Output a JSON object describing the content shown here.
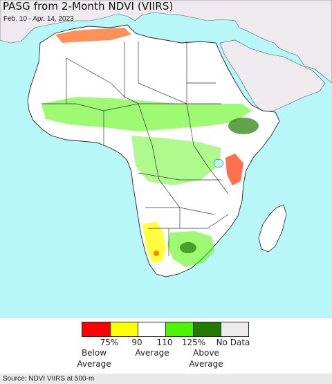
{
  "header": {
    "title": "PASG from 2-Month NDVI (VIIRS)",
    "date_range": "Feb. 10 - Apr. 14, 2023"
  },
  "colors": {
    "ocean": "#b8f7f7",
    "land_no_data": "#efeaf0",
    "land_average": "#ffffff",
    "border": "#333333"
  },
  "legend": {
    "swatches": [
      {
        "color": "#ff0000"
      },
      {
        "color": "#ffff00"
      },
      {
        "color": "#ffffff"
      },
      {
        "color": "#4ef500"
      },
      {
        "color": "#227a00"
      },
      {
        "color": "#efeaf0"
      }
    ],
    "ticks": [
      "75%",
      "90",
      "110",
      "125%",
      "No Data"
    ],
    "below_line1": "Below",
    "below_line2": "Average",
    "average": "Average",
    "above_line1": "Above",
    "above_line2": "Average"
  },
  "footer": {
    "source": "Source: NDVI VIIRS at 500-m"
  }
}
